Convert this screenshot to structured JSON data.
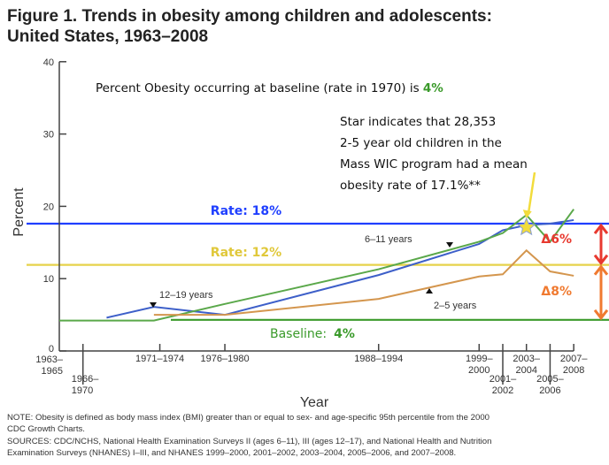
{
  "title_lines": [
    "Figure 1. Trends in obesity among children and adolescents:",
    "United States, 1963–2008"
  ],
  "chart_data": {
    "type": "line",
    "xlabel": "Year",
    "ylabel": "Percent",
    "ylim": [
      0,
      40
    ],
    "yticks": [
      "0",
      "10",
      "20",
      "30",
      "40"
    ],
    "xticks": [
      {
        "label": [
          "1963–",
          "1965"
        ],
        "year": 1964
      },
      {
        "label": [
          "1966–",
          "1970"
        ],
        "year": 1966
      },
      {
        "label": [
          "1971–1974"
        ],
        "year": 1972.5
      },
      {
        "label": [
          "1976–1980"
        ],
        "year": 1978
      },
      {
        "label": [
          "1988–1994"
        ],
        "year": 1991
      },
      {
        "label": [
          "1999–",
          "2000"
        ],
        "year": 1999.5
      },
      {
        "label": [
          "2001–",
          "2002"
        ],
        "year": 2001.5
      },
      {
        "label": [
          "2003–",
          "2004"
        ],
        "year": 2003.5
      },
      {
        "label": [
          "2005–",
          "2006"
        ],
        "year": 2005.5
      },
      {
        "label": [
          "2007–",
          "2008"
        ],
        "year": 2007.5
      }
    ],
    "series": [
      {
        "name": "12–19 years",
        "color": "#3d5fc9",
        "x": [
          1968,
          1972,
          1978,
          1991,
          1999.5,
          2001.5,
          2003.5,
          2005.5,
          2007.5
        ],
        "y": [
          4.6,
          6.1,
          5.0,
          10.5,
          14.8,
          16.7,
          17.4,
          17.6,
          18.1
        ]
      },
      {
        "name": "6–11 years",
        "color": "#5aa84a",
        "x": [
          1964,
          1972,
          1978,
          1991,
          1999.5,
          2001.5,
          2003.5,
          2005.5,
          2007.5
        ],
        "y": [
          4.2,
          4.2,
          6.5,
          11.3,
          15.1,
          16.3,
          18.8,
          15.1,
          19.6
        ]
      },
      {
        "name": "2–5 years",
        "color": "#d4964e",
        "x": [
          1972,
          1978,
          1991,
          1999.5,
          2001.5,
          2003.5,
          2005.5,
          2007.5
        ],
        "y": [
          5.0,
          5.0,
          7.2,
          10.3,
          10.6,
          13.9,
          11.0,
          10.4
        ]
      }
    ],
    "reference_lines": [
      {
        "label": "Rate: 18%",
        "value": 17.6,
        "color": "#1f3fff"
      },
      {
        "label": "Rate: 12%",
        "value": 11.9,
        "color": "#e6d24a"
      },
      {
        "label_prefix": "Baseline:",
        "label_value": "4%",
        "value": 4.3,
        "color": "#3a9a2a"
      }
    ],
    "star": {
      "year": 2003.5,
      "value": 17.1,
      "color": "#f2dc3c"
    },
    "deltas": [
      {
        "label": "Δ6%",
        "color": "#e8392f",
        "from": 17.6,
        "to": 11.9
      },
      {
        "label": "Δ8%",
        "color": "#f07a30",
        "from": 11.9,
        "to": 4.3
      }
    ],
    "series_labels": [
      "6–11 years",
      "12–19 years",
      "2–5 years"
    ]
  },
  "annotations": {
    "baseline_text": "Percent Obesity occurring at baseline (rate in 1970) is ",
    "baseline_value": "4%",
    "star_note": [
      "Star indicates that 28,353",
      "2-5 year old children in the",
      "Mass WIC program had a mean",
      "obesity rate of 17.1%**"
    ]
  },
  "notes": [
    "NOTE: Obesity is defined as body mass index (BMI) greater than or equal to sex- and age-specific 95th percentile from the 2000",
    "CDC Growth Charts.",
    "SOURCES: CDC/NCHS, National Health Examination Surveys II (ages 6–11), III (ages 12–17), and National Health and Nutrition",
    "Examination Surveys (NHANES) I–III, and NHANES 1999–2000, 2001–2002, 2003–2004, 2005–2006, and 2007–2008."
  ]
}
